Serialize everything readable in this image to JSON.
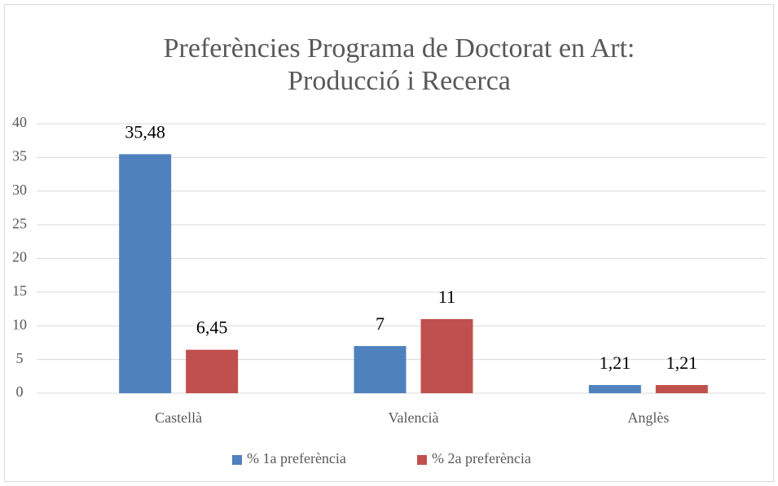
{
  "chart_data": {
    "type": "bar",
    "title": [
      "Preferències Programa de Doctorat en Art:",
      "Producció i Recerca"
    ],
    "categories": [
      "Castellà",
      "Valencià",
      "Anglès"
    ],
    "series": [
      {
        "name": "% 1a preferència",
        "color": "#4f81bd",
        "values": [
          35.48,
          7,
          1.21
        ],
        "value_labels": [
          "35,48",
          "7",
          "1,21"
        ]
      },
      {
        "name": "% 2a preferència",
        "color": "#c0504d",
        "values": [
          6.45,
          11,
          1.21
        ],
        "value_labels": [
          "6,45",
          "11",
          "1,21"
        ]
      }
    ],
    "ylim": [
      0,
      40
    ],
    "yticks": [
      0,
      5,
      10,
      15,
      20,
      25,
      30,
      35,
      40
    ],
    "grid": true,
    "legend": "bottom"
  }
}
